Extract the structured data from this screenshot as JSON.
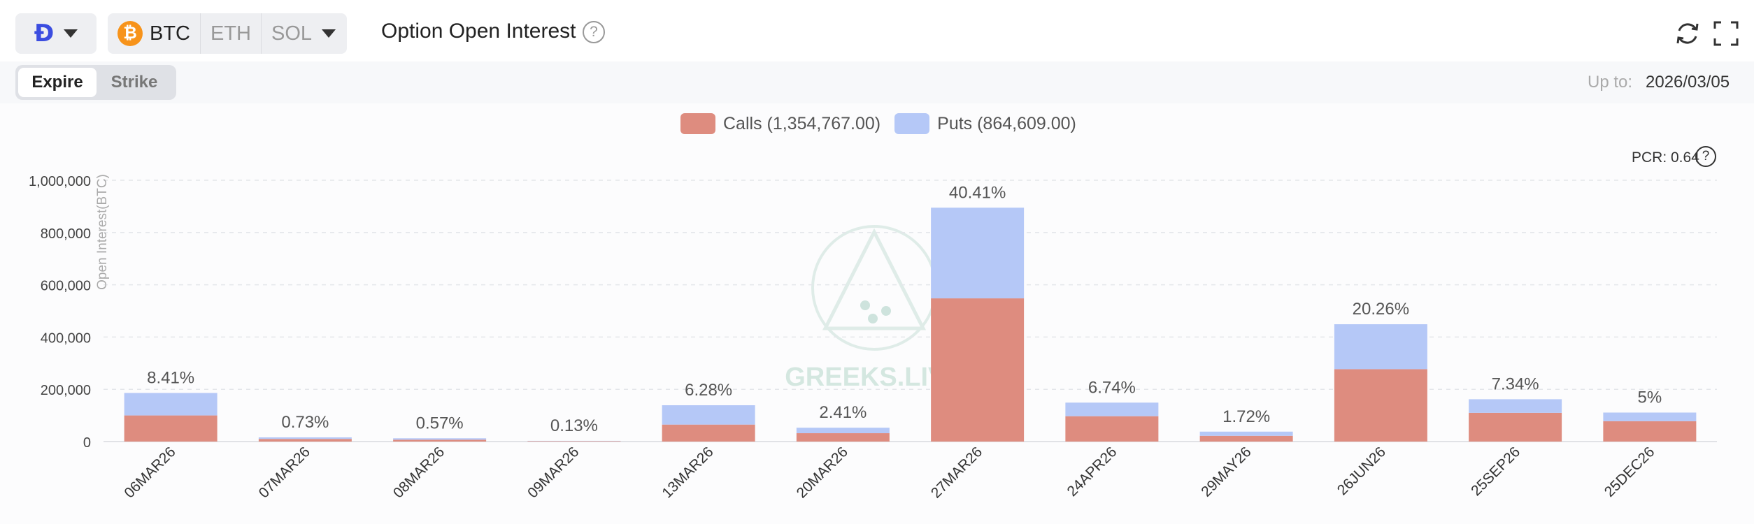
{
  "header": {
    "exchange_icon": "deribit-logo-icon",
    "exchange_glyph": "Ð",
    "assets": [
      {
        "label": "BTC",
        "icon": "bitcoin-icon",
        "active": true
      },
      {
        "label": "ETH",
        "active": false
      },
      {
        "label": "SOL",
        "active": false
      }
    ],
    "title": "Option Open Interest",
    "help_glyph": "?"
  },
  "subbar": {
    "tabs": [
      {
        "label": "Expire",
        "active": true
      },
      {
        "label": "Strike",
        "active": false
      }
    ],
    "upto_label": "Up to:",
    "upto_value": "2026/03/05"
  },
  "legend": {
    "calls": "Calls (1,354,767.00)",
    "puts": "Puts (864,609.00)"
  },
  "pcr_label": "PCR: 0.64",
  "watermark": "GREEKS.LIVE",
  "colors": {
    "calls": "#de8c7f",
    "puts": "#b5c8f7",
    "brand": "#3b4de0",
    "btc": "#f7931a"
  },
  "chart_data": {
    "type": "bar",
    "stacked": true,
    "categories": [
      "06MAR26",
      "07MAR26",
      "08MAR26",
      "09MAR26",
      "13MAR26",
      "20MAR26",
      "27MAR26",
      "24APR26",
      "29MAY26",
      "26JUN26",
      "25SEP26",
      "25DEC26"
    ],
    "series": [
      {
        "name": "Calls",
        "values": [
          100000,
          10000,
          7000,
          2000,
          65000,
          32000,
          548000,
          97000,
          22000,
          277000,
          110000,
          78000
        ]
      },
      {
        "name": "Puts",
        "values": [
          86000,
          6000,
          5600,
          900,
          74000,
          21000,
          347000,
          52000,
          16000,
          172000,
          52000,
          33000
        ]
      }
    ],
    "bar_labels": [
      "8.41%",
      "0.73%",
      "0.57%",
      "0.13%",
      "6.28%",
      "2.41%",
      "40.41%",
      "6.74%",
      "1.72%",
      "20.26%",
      "7.34%",
      "5%"
    ],
    "ylabel": "Open Interest(BTC)",
    "yticks": [
      "0",
      "200,000",
      "400,000",
      "600,000",
      "800,000",
      "1,000,000"
    ],
    "ylim": [
      0,
      1000000
    ],
    "grid": true,
    "legend_position": "top-center"
  }
}
